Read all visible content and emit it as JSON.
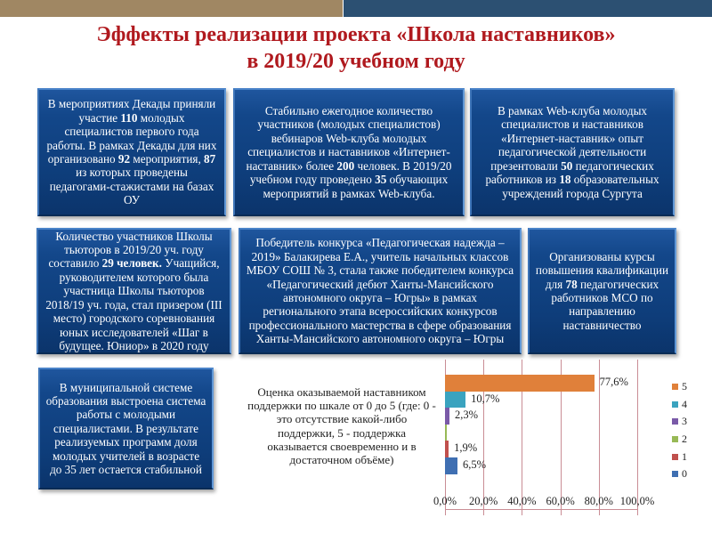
{
  "header": {
    "title_line1": "Эффекты реализации проекта «Школа наставников»",
    "title_line2": "в 2019/20 учебном году",
    "bar_colors": {
      "left": "#a08763",
      "right": "#2c5072"
    },
    "title_color": "#b0191e"
  },
  "cards": [
    {
      "id": "decade-participants",
      "parts": [
        {
          "t": "В мероприятиях Декады приняли участие "
        },
        {
          "t": "110",
          "b": true
        },
        {
          "t": " молодых специалистов первого года работы. В рамках Декады для них организовано "
        },
        {
          "t": "92",
          "b": true
        },
        {
          "t": " мероприятия, "
        },
        {
          "t": "87",
          "b": true
        },
        {
          "t": " из которых проведены педагогами-стажистами на базах ОУ"
        }
      ]
    },
    {
      "id": "webinar-participants",
      "parts": [
        {
          "t": "Стабильно ежегодное количество участников (молодых специалистов) вебинаров Web-клуба молодых специалистов и наставников «Интернет-наставник» более "
        },
        {
          "t": "200",
          "b": true
        },
        {
          "t": " человек. В 2019/20 учебном году проведено "
        },
        {
          "t": "35",
          "b": true
        },
        {
          "t": " обучающих мероприятий в рамках Web-клуба."
        }
      ]
    },
    {
      "id": "webclub-presenters",
      "parts": [
        {
          "t": "В рамках Web-клуба молодых специалистов и наставников «Интернет-наставник» опыт педагогической деятельности презентовали "
        },
        {
          "t": "50",
          "b": true
        },
        {
          "t": " педагогических работников из "
        },
        {
          "t": "18",
          "b": true
        },
        {
          "t": " образовательных учреждений города Сургута"
        }
      ]
    },
    {
      "id": "tutor-school",
      "parts": [
        {
          "t": "Количество участников Школы тьюторов в 2019/20 уч. году составило "
        },
        {
          "t": "29 человек.",
          "b": true
        },
        {
          "t": " Учащийся, руководителем которого была участница Школы тьюторов 2018/19 уч. года, стал призером (III место) городского соревнования юных исследователей «Шаг в будущее. Юниор» в 2020 году"
        }
      ]
    },
    {
      "id": "competition-winner",
      "parts": [
        {
          "t": "Победитель конкурса «Педагогическая надежда – 2019» Балакирева Е.А., учитель начальных классов МБОУ СОШ № 3, стала также победителем конкурса «Педагогический дебют Ханты-Мансийского автономного округа – Югры» в рамках регионального этапа всероссийских конкурсов профессионального мастерства в сфере образования Ханты-Мансийского автономного округа – Югры"
        }
      ]
    },
    {
      "id": "qualification-courses",
      "parts": [
        {
          "t": "Организованы курсы повышения квалификации для "
        },
        {
          "t": "78",
          "b": true
        },
        {
          "t": " педагогических работников МСО по направлению наставничество"
        }
      ]
    },
    {
      "id": "young-teachers-share",
      "parts": [
        {
          "t": "В муниципальной системе образования выстроена система работы с молодыми специалистами. В результате реализуемых программ доля молодых учителей в возрасте до 35 лет остается стабильной"
        }
      ]
    }
  ],
  "chart_description": "Оценка оказываемой наставником поддержки по шкале от 0 до 5 (где: 0 - это отсутствие какой-либо поддержки, 5 - поддержка оказывается своевременно и в достаточном объёме)",
  "chart_data": {
    "type": "bar",
    "orientation": "horizontal",
    "title": "Оценка оказываемой наставником поддержки по шкале от 0 до 5 (где: 0 - это отсутствие какой-либо поддержки, 5 - поддержка оказывается своевременно и в достаточном объёме)",
    "xlabel": "",
    "ylabel": "",
    "xlim": [
      0,
      100
    ],
    "grid": "vertical",
    "legend_position": "right",
    "x_tick_labels": [
      "0,0%",
      "20,0%",
      "40,0%",
      "60,0%",
      "80,0%",
      "100,0%"
    ],
    "series": [
      {
        "name": "5",
        "value": 77.6,
        "label": "77,6%",
        "color": "#e0803a"
      },
      {
        "name": "4",
        "value": 10.7,
        "label": "10,7%",
        "color": "#3aa3bf"
      },
      {
        "name": "3",
        "value": 2.3,
        "label": "2,3%",
        "color": "#7a5aa8"
      },
      {
        "name": "2",
        "value": 0.3,
        "label": "",
        "color": "#98b956"
      },
      {
        "name": "1",
        "value": 1.9,
        "label": "1,9%",
        "color": "#c0504d"
      },
      {
        "name": "0",
        "value": 6.5,
        "label": "6,5%",
        "color": "#3f6fb2"
      }
    ]
  }
}
